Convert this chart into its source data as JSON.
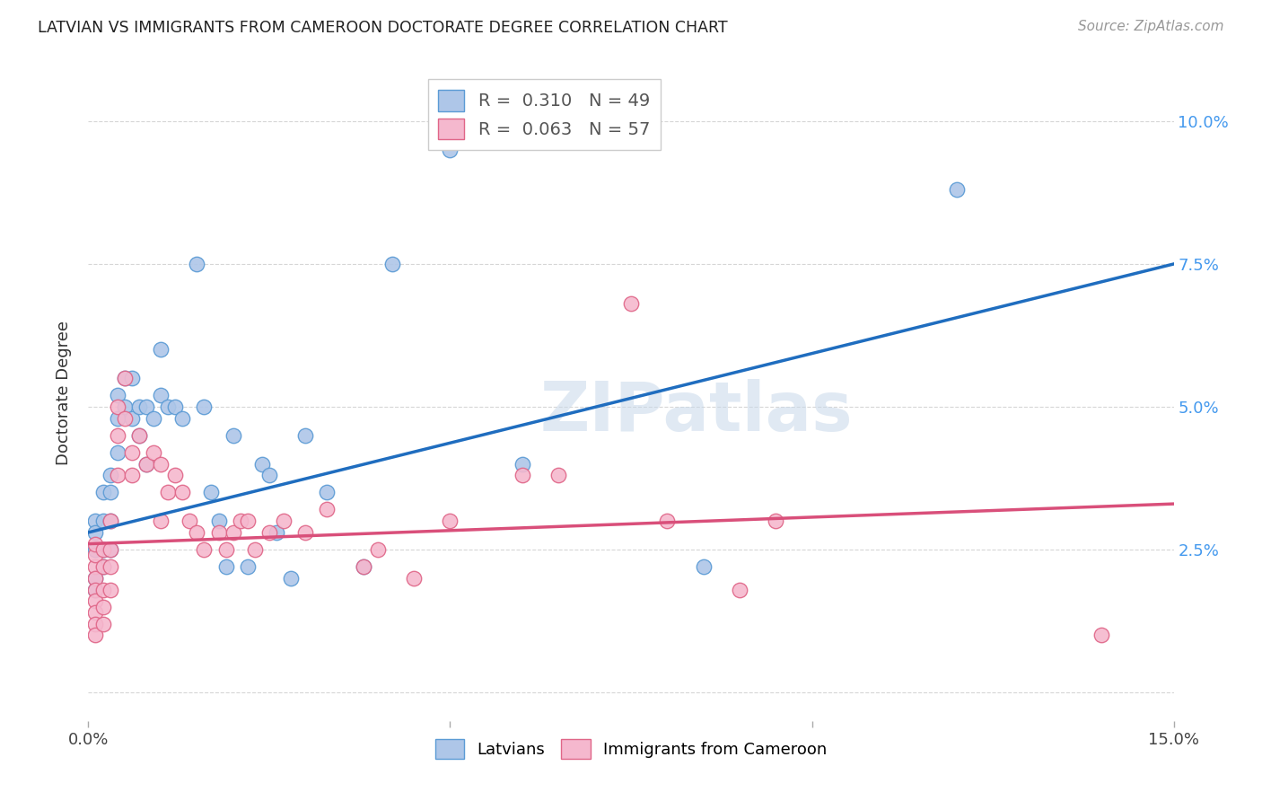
{
  "title": "LATVIAN VS IMMIGRANTS FROM CAMEROON DOCTORATE DEGREE CORRELATION CHART",
  "source": "Source: ZipAtlas.com",
  "ylabel": "Doctorate Degree",
  "xlabel": "",
  "xlim": [
    0.0,
    0.15
  ],
  "ylim": [
    -0.005,
    0.11
  ],
  "xticks": [
    0.0,
    0.05,
    0.1,
    0.15
  ],
  "xticklabels": [
    "0.0%",
    "",
    "",
    "15.0%"
  ],
  "yticks": [
    0.0,
    0.025,
    0.05,
    0.075,
    0.1
  ],
  "yticklabels_right": [
    "",
    "2.5%",
    "5.0%",
    "7.5%",
    "10.0%"
  ],
  "blue_R": 0.31,
  "blue_N": 49,
  "pink_R": 0.063,
  "pink_N": 57,
  "latvian_color": "#aec6e8",
  "cameroon_color": "#f5b8ce",
  "latvian_edge": "#5b9bd5",
  "cameroon_edge": "#e06688",
  "trend_blue": "#1f6dbf",
  "trend_pink": "#d94f7a",
  "watermark": "ZIPatlas",
  "background": "#ffffff",
  "legend_latvians": "Latvians",
  "legend_cameroon": "Immigrants from Cameroon",
  "blue_trend_x0": 0.0,
  "blue_trend_y0": 0.028,
  "blue_trend_x1": 0.15,
  "blue_trend_y1": 0.075,
  "pink_trend_x0": 0.0,
  "pink_trend_y0": 0.026,
  "pink_trend_x1": 0.15,
  "pink_trend_y1": 0.033,
  "latvian_x": [
    0.001,
    0.001,
    0.001,
    0.001,
    0.001,
    0.002,
    0.002,
    0.002,
    0.002,
    0.003,
    0.003,
    0.003,
    0.003,
    0.004,
    0.004,
    0.004,
    0.005,
    0.005,
    0.006,
    0.006,
    0.007,
    0.007,
    0.008,
    0.008,
    0.009,
    0.01,
    0.01,
    0.011,
    0.012,
    0.013,
    0.015,
    0.016,
    0.017,
    0.018,
    0.019,
    0.02,
    0.022,
    0.024,
    0.025,
    0.026,
    0.028,
    0.03,
    0.033,
    0.038,
    0.042,
    0.05,
    0.06,
    0.085,
    0.12
  ],
  "latvian_y": [
    0.03,
    0.028,
    0.025,
    0.02,
    0.018,
    0.035,
    0.03,
    0.025,
    0.022,
    0.038,
    0.035,
    0.03,
    0.025,
    0.052,
    0.048,
    0.042,
    0.055,
    0.05,
    0.055,
    0.048,
    0.05,
    0.045,
    0.05,
    0.04,
    0.048,
    0.06,
    0.052,
    0.05,
    0.05,
    0.048,
    0.075,
    0.05,
    0.035,
    0.03,
    0.022,
    0.045,
    0.022,
    0.04,
    0.038,
    0.028,
    0.02,
    0.045,
    0.035,
    0.022,
    0.075,
    0.095,
    0.04,
    0.022,
    0.088
  ],
  "cameroon_x": [
    0.001,
    0.001,
    0.001,
    0.001,
    0.001,
    0.001,
    0.001,
    0.001,
    0.001,
    0.002,
    0.002,
    0.002,
    0.002,
    0.002,
    0.003,
    0.003,
    0.003,
    0.003,
    0.004,
    0.004,
    0.004,
    0.005,
    0.005,
    0.006,
    0.006,
    0.007,
    0.008,
    0.009,
    0.01,
    0.01,
    0.011,
    0.012,
    0.013,
    0.014,
    0.015,
    0.016,
    0.018,
    0.019,
    0.02,
    0.021,
    0.022,
    0.023,
    0.025,
    0.027,
    0.03,
    0.033,
    0.038,
    0.04,
    0.045,
    0.05,
    0.06,
    0.065,
    0.075,
    0.08,
    0.09,
    0.095,
    0.14
  ],
  "cameroon_y": [
    0.022,
    0.02,
    0.018,
    0.016,
    0.014,
    0.012,
    0.01,
    0.024,
    0.026,
    0.025,
    0.022,
    0.018,
    0.015,
    0.012,
    0.03,
    0.025,
    0.022,
    0.018,
    0.05,
    0.045,
    0.038,
    0.055,
    0.048,
    0.042,
    0.038,
    0.045,
    0.04,
    0.042,
    0.04,
    0.03,
    0.035,
    0.038,
    0.035,
    0.03,
    0.028,
    0.025,
    0.028,
    0.025,
    0.028,
    0.03,
    0.03,
    0.025,
    0.028,
    0.03,
    0.028,
    0.032,
    0.022,
    0.025,
    0.02,
    0.03,
    0.038,
    0.038,
    0.068,
    0.03,
    0.018,
    0.03,
    0.01
  ]
}
